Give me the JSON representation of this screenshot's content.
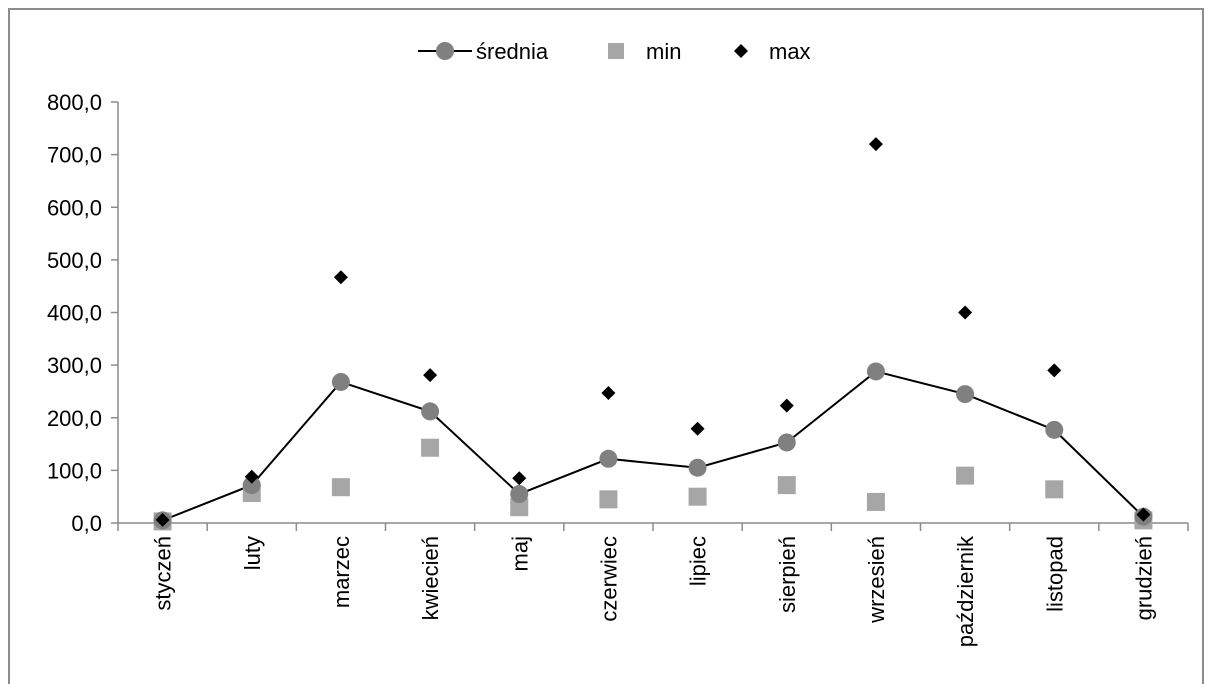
{
  "chart_data": {
    "type": "line",
    "categories": [
      "styczeń",
      "luty",
      "marzec",
      "kwiecień",
      "maj",
      "czerwiec",
      "lipiec",
      "sierpień",
      "wrzesień",
      "październik",
      "listopad",
      "grudzień"
    ],
    "series": [
      {
        "name": "średnia",
        "kind": "line",
        "color": "#808080",
        "values": [
          5,
          72,
          268,
          212,
          55,
          122,
          105,
          153,
          288,
          245,
          177,
          12
        ]
      },
      {
        "name": "min",
        "kind": "marker-square",
        "color": "#a6a6a6",
        "values": [
          3,
          57,
          68,
          143,
          30,
          45,
          50,
          72,
          40,
          90,
          64,
          5
        ]
      },
      {
        "name": "max",
        "kind": "marker-diamond",
        "color": "#000000",
        "values": [
          6,
          88,
          467,
          281,
          85,
          247,
          179,
          223,
          720,
          400,
          290,
          16
        ]
      }
    ],
    "yticks": [
      "0,0",
      "100,0",
      "200,0",
      "300,0",
      "400,0",
      "500,0",
      "600,0",
      "700,0",
      "800,0"
    ],
    "ylim": [
      0,
      800
    ],
    "legend_position": "top",
    "grid": false
  }
}
